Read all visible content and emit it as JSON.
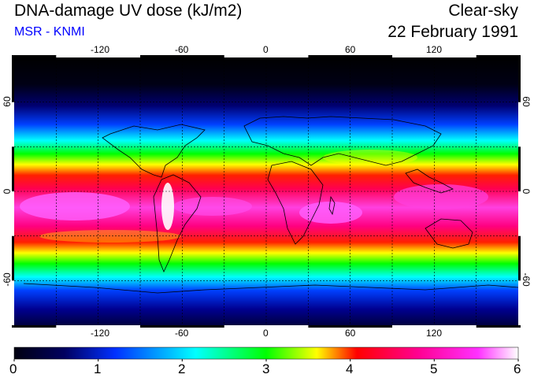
{
  "header": {
    "title": "DNA-damage UV dose (kJ/m2)",
    "subtitle": "MSR - KNMI",
    "mode": "Clear-sky",
    "date": "22 February 1991"
  },
  "colors": {
    "subtitle": "#0000ff",
    "colormap": [
      "#000010",
      "#000060",
      "#0030ff",
      "#00ffff",
      "#00ff00",
      "#ffff00",
      "#ff0000",
      "#ff0090",
      "#ff30ff",
      "#ffffff"
    ]
  },
  "map": {
    "lon_ticks": [
      "-120",
      "-60",
      "0",
      "60",
      "120"
    ],
    "lat_ticks_left": [
      "60",
      "0",
      "-60"
    ],
    "lat_ticks_right": [
      "60",
      "0",
      "-60"
    ],
    "gridlines": "dashed, every 30 degrees",
    "projection": "equirectangular, 180W to 180E, 90S to 90N"
  },
  "colorbar": {
    "min": 0,
    "max": 6,
    "labels": [
      "0",
      "1",
      "2",
      "3",
      "4",
      "5",
      "6"
    ]
  }
}
